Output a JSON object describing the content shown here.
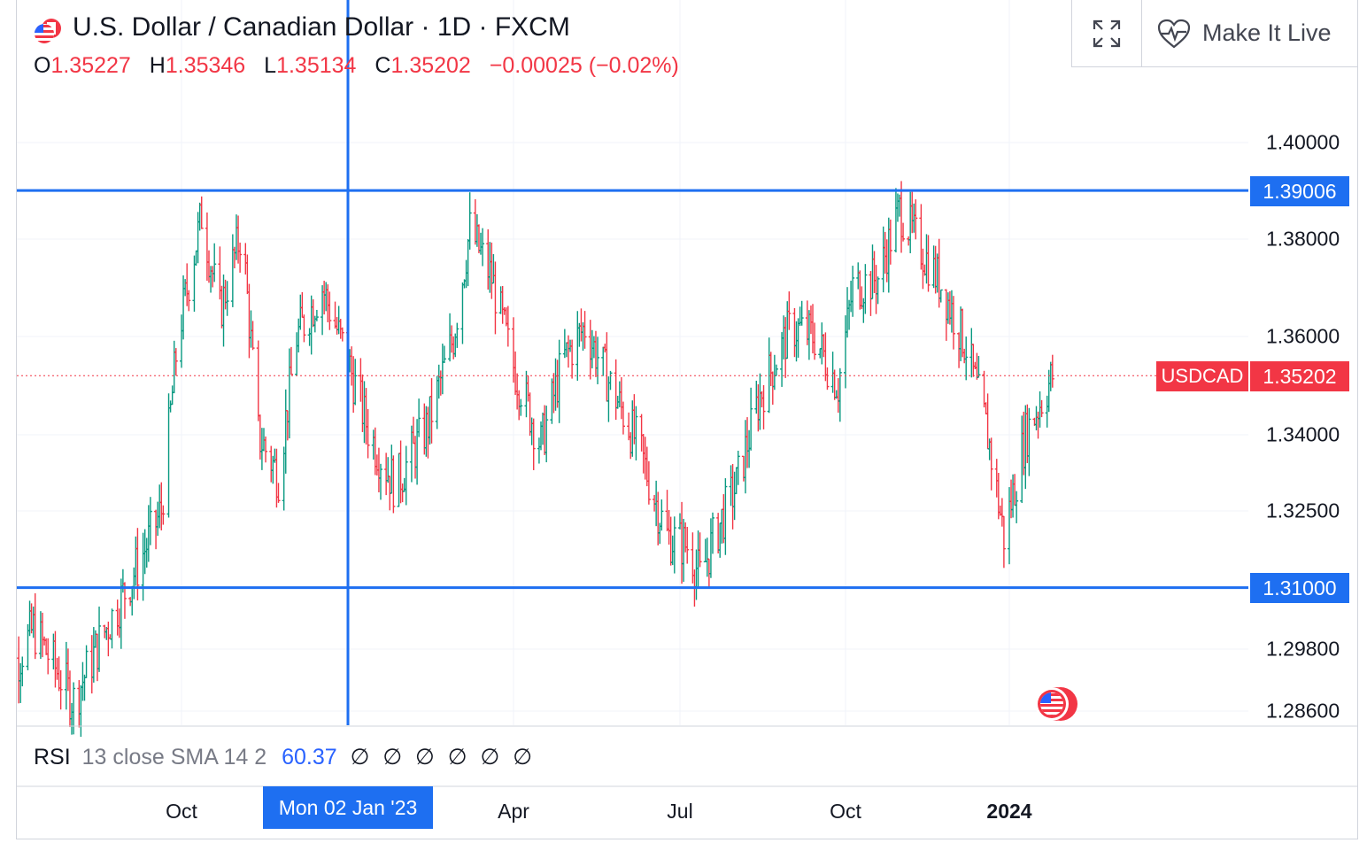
{
  "header": {
    "title": "U.S. Dollar / Canadian Dollar · 1D · FXCM",
    "ohlc": [
      {
        "key": "O",
        "value": "1.35227"
      },
      {
        "key": "H",
        "value": "1.35346"
      },
      {
        "key": "L",
        "value": "1.35134"
      },
      {
        "key": "C",
        "value": "1.35202"
      }
    ],
    "change": "−0.00025 (−0.02%)"
  },
  "toolbar": {
    "make_live_label": "Make It Live"
  },
  "rsi": {
    "label": "RSI",
    "params": "13 close SMA 14 2",
    "value": "60.37",
    "empty_values": [
      "∅",
      "∅",
      "∅",
      "∅",
      "∅",
      "∅"
    ]
  },
  "crosshair_label": "Mon 02 Jan '23",
  "colors": {
    "up": "#089981",
    "down": "#f23645",
    "line": "#1e6ff1",
    "accent": "#2962ff"
  },
  "chart_data": {
    "type": "ohlc",
    "symbol": "USDCAD",
    "last_price": "1.35202",
    "y_ticks": [
      "1.40000",
      "1.38000",
      "1.36000",
      "1.34000",
      "1.32500",
      "1.29800",
      "1.28600"
    ],
    "x_ticks": [
      {
        "label": "Oct",
        "bold": false
      },
      {
        "label": "Apr",
        "bold": false
      },
      {
        "label": "Jul",
        "bold": false
      },
      {
        "label": "Oct",
        "bold": false
      },
      {
        "label": "2024",
        "bold": true
      }
    ],
    "horizontal_lines": [
      {
        "price": 1.39006,
        "label": "1.39006"
      },
      {
        "price": 1.31,
        "label": "1.31000"
      }
    ],
    "grid": true,
    "trend_anchors": [
      [
        "2022-06-27",
        1.29
      ],
      [
        "2022-07-14",
        1.302
      ],
      [
        "2022-08-05",
        1.288
      ],
      [
        "2022-08-20",
        1.3
      ],
      [
        "2022-09-10",
        1.315
      ],
      [
        "2022-09-22",
        1.325
      ],
      [
        "2022-10-01",
        1.36
      ],
      [
        "2022-10-14",
        1.385
      ],
      [
        "2022-10-24",
        1.365
      ],
      [
        "2022-11-05",
        1.382
      ],
      [
        "2022-11-14",
        1.34
      ],
      [
        "2022-11-25",
        1.332
      ],
      [
        "2022-12-05",
        1.36
      ],
      [
        "2022-12-19",
        1.37
      ],
      [
        "2023-01-02",
        1.355
      ],
      [
        "2023-01-14",
        1.34
      ],
      [
        "2023-01-28",
        1.33
      ],
      [
        "2023-02-15",
        1.342
      ],
      [
        "2023-03-01",
        1.36
      ],
      [
        "2023-03-10",
        1.382
      ],
      [
        "2023-03-22",
        1.372
      ],
      [
        "2023-04-02",
        1.355
      ],
      [
        "2023-04-18",
        1.338
      ],
      [
        "2023-04-30",
        1.355
      ],
      [
        "2023-05-12",
        1.362
      ],
      [
        "2023-05-26",
        1.35
      ],
      [
        "2023-06-10",
        1.338
      ],
      [
        "2023-06-26",
        1.32
      ],
      [
        "2023-07-08",
        1.318
      ],
      [
        "2023-07-14",
        1.312
      ],
      [
        "2023-07-22",
        1.32
      ],
      [
        "2023-08-03",
        1.33
      ],
      [
        "2023-08-16",
        1.348
      ],
      [
        "2023-09-02",
        1.362
      ],
      [
        "2023-09-15",
        1.36
      ],
      [
        "2023-09-28",
        1.35
      ],
      [
        "2023-10-06",
        1.37
      ],
      [
        "2023-10-20",
        1.372
      ],
      [
        "2023-11-01",
        1.386
      ],
      [
        "2023-11-10",
        1.38
      ],
      [
        "2023-11-25",
        1.37
      ],
      [
        "2023-12-08",
        1.358
      ],
      [
        "2023-12-20",
        1.34
      ],
      [
        "2023-12-29",
        1.32
      ],
      [
        "2024-01-10",
        1.34
      ],
      [
        "2024-01-25",
        1.352
      ]
    ]
  }
}
